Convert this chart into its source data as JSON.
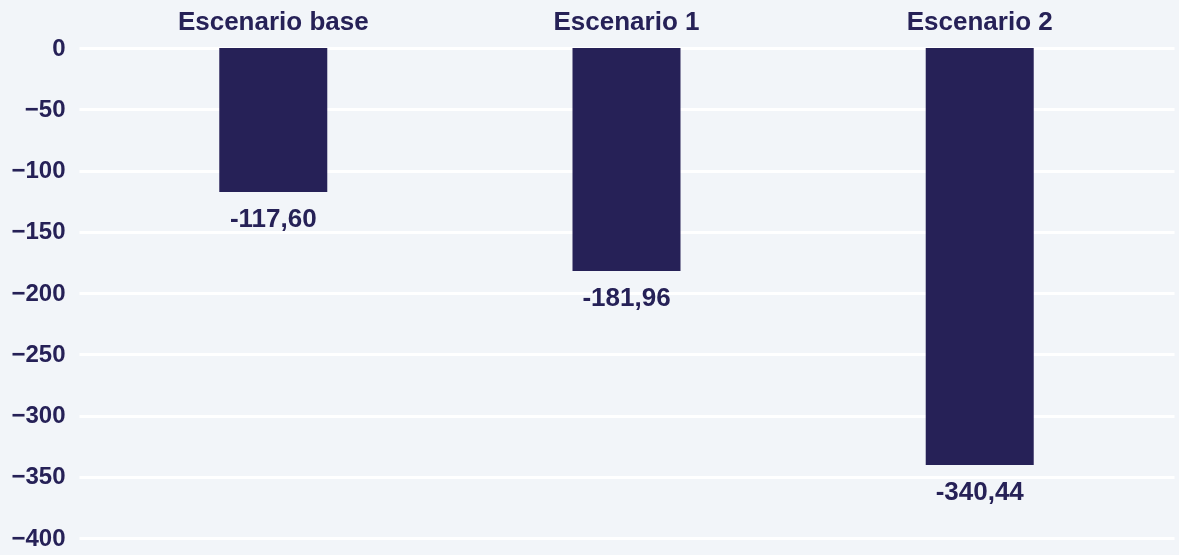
{
  "chart_data": {
    "type": "bar",
    "categories": [
      "Escenario base",
      "Escenario 1",
      "Escenario 2"
    ],
    "values": [
      -117.6,
      -181.96,
      -340.44
    ],
    "value_labels": [
      "-117,60",
      "-181,96",
      "-340,44"
    ],
    "color": "#262157",
    "ylim": [
      -400,
      0
    ],
    "yticks": [
      0,
      -50,
      -100,
      -150,
      -200,
      -250,
      -300,
      -350,
      -400
    ],
    "grid": "y"
  }
}
